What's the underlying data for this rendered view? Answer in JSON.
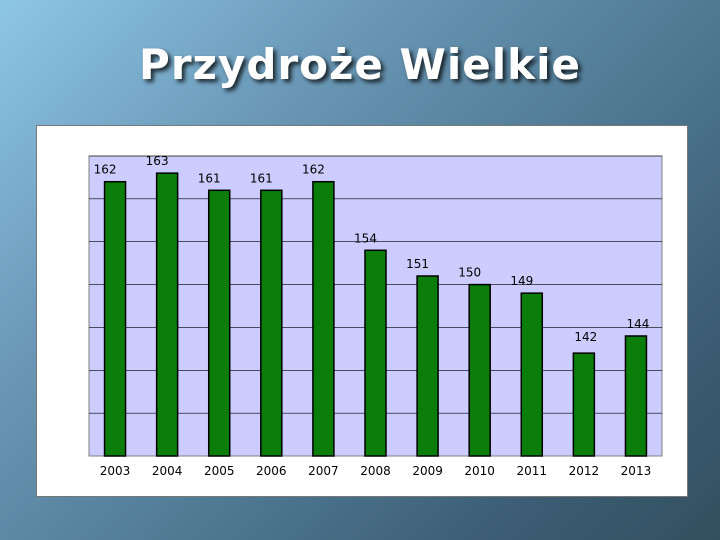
{
  "page": {
    "title": "Przydroże Wielkie"
  },
  "colors": {
    "bar": "#0a7d0a",
    "plot_bg": "#ccccff",
    "grid": "#000000"
  },
  "chart_data": {
    "type": "bar",
    "title": "Przydroże Wielkie",
    "xlabel": "",
    "ylabel": "",
    "categories": [
      "2003",
      "2004",
      "2005",
      "2006",
      "2007",
      "2008",
      "2009",
      "2010",
      "2011",
      "2012",
      "2013"
    ],
    "values": [
      162,
      163,
      161,
      161,
      162,
      154,
      151,
      150,
      149,
      142,
      144
    ],
    "ylim": [
      130,
      165
    ],
    "grid": true,
    "legend": "none"
  }
}
